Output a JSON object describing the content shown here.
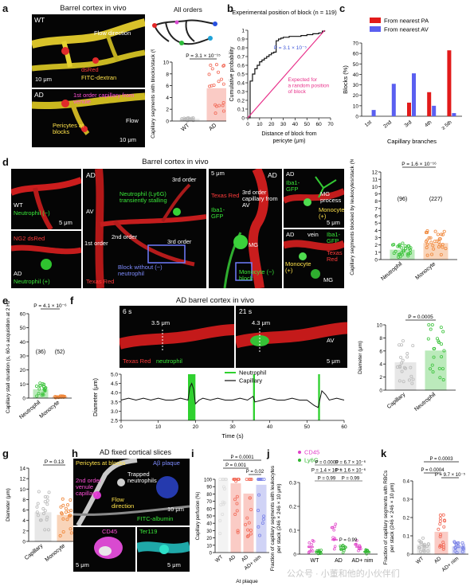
{
  "panels": {
    "a": {
      "label": "a",
      "title": "Barrel cortex in vivo",
      "wt": {
        "tag": "WT",
        "flow": "Flow direction",
        "dsred": "dsRed",
        "fitc": "FITC-dextran",
        "scale": "10 μm"
      },
      "ad": {
        "tag": "AD",
        "capillary": "1st order capillary from venule",
        "pericytes": "Pericytes at blocks",
        "flow": "Flow",
        "scale": "10 μm"
      },
      "all_orders": "All orders",
      "pvalue": "P = 3.1 × 10⁻¹⁵",
      "ylabel": "Capillary segments with blocks/stack (%)",
      "groups": [
        "WT",
        "AD"
      ]
    },
    "b": {
      "label": "b",
      "title": "Experimental position of block (n = 119)",
      "pvalue": "P = 3.1 × 10⁻⁵",
      "expected": "Expected for a random position of block",
      "ylabel": "Cumulative probability",
      "xlabel": "Distance of block from pericyte (μm)"
    },
    "c": {
      "label": "c",
      "legend": [
        "From nearest PA",
        "From nearest AV"
      ],
      "ylabel": "Blocks (%)",
      "xlabel": "Capillary branches"
    },
    "d": {
      "label": "d",
      "title": "Barrel cortex in vivo",
      "p1": {
        "wt": "WT",
        "neutrophil_minus": "Neutrophil (−)",
        "ng2": "NG2 dsRed",
        "ad": "AD",
        "neutrophil_plus": "Neutrophil (+)",
        "scale": "5 μm"
      },
      "p2": {
        "ad": "AD",
        "av": "AV",
        "first": "1st order",
        "second": "2nd order",
        "third_top": "3rd order",
        "third_bottom": "3rd order",
        "neutrophil": "Neutrophil (Ly6G) transiently stalling",
        "block": "Block without (−) neutrophil",
        "texas": "Texas Red"
      },
      "p3": {
        "scale": "5 μm",
        "ad": "AD",
        "texas": "Texas Red",
        "iba": "Iba1-GFP",
        "third": "3rd order capillary from AV",
        "mg": "MG",
        "monocyte": "Monocyte (−) block"
      },
      "p4": {
        "ad": "AD",
        "iba": "Iba1-GFP",
        "mg_process": "MG process",
        "monocyte": "Monocyte (+)",
        "scale": "5 μm"
      },
      "p5": {
        "ad": "AD",
        "vein": "vein",
        "iba": "Iba1-GFP",
        "texas": "Texas Red",
        "monocyte": "Monocyte (+)",
        "mg": "MG"
      },
      "pvalue": "P = 1.6 × 10⁻¹⁶",
      "counts": [
        "(96)",
        "(227)"
      ],
      "ylabel": "Capillary segments blocked by leukocytes/stack (%)",
      "groups": [
        "Neutrophil",
        "Monocyte"
      ]
    },
    "e": {
      "label": "e",
      "pvalue": "P = 4.1 × 10⁻⁶",
      "counts": [
        "(36)",
        "(52)"
      ],
      "ylabel": "Capillary stall duration (s, 60-s acquisition at 2 Hz)",
      "groups": [
        "Neutrophil",
        "Monocyte"
      ]
    },
    "f": {
      "label": "f",
      "title": "AD barrel cortex in vivo",
      "t1": "6 s",
      "t2": "21 s",
      "d1": "3.5 μm",
      "d2": "4.3 μm",
      "av": "AV",
      "stain_red": "Texas Red",
      "stain_green": "neutrophil",
      "scale": "5 μm",
      "legend": [
        "Neutrophil",
        "Capillary"
      ],
      "ylabel": "Diameter (μm)",
      "xlabel": "Time (s)",
      "pvalue": "P = 0.0005",
      "groups": [
        "Capillary",
        "Neutrophil"
      ]
    },
    "g": {
      "label": "g",
      "pvalue": "P = 0.13",
      "ylabel": "Diameter (μm)",
      "groups": [
        "Capillary",
        "Monocyte"
      ]
    },
    "h": {
      "label": "h",
      "title": "AD fixed cortical slices",
      "pericytes": "Pericytes at blocks",
      "ab": "Aβ plaque",
      "second": "2nd order venule capillary",
      "trapped": "Trapped neutrophils",
      "flow": "Flow direction",
      "fitc": "FITC-albumin",
      "cd45": "CD45",
      "ter119": "Ter119",
      "scale1": "10 μm",
      "scale2": "5 μm",
      "scale3": "5 μm"
    },
    "i": {
      "label": "i",
      "p_top": "P = 0.0001",
      "p_left": "P = 0.001",
      "p_right": "P = 0.02",
      "ylabel": "Capillary perfusion (%)",
      "groups": [
        "WT",
        "AD",
        "AD",
        "AD+ nim"
      ],
      "subtitle": "At plaque"
    },
    "j": {
      "label": "j",
      "legend": [
        "CD45",
        "Ly6G"
      ],
      "ptexts": [
        "P = 0.0009",
        "P = 6.7 × 10⁻⁶",
        "P = 1.4 × 10⁻⁶",
        "P = 1.6 × 10⁻⁶",
        "P = 0.99",
        "P = 0.99",
        "P = 0.99"
      ],
      "ylabel": "Fraction of capillary segments with leukocytes per stack (246 × 246 × 10 μm)",
      "groups": [
        "WT",
        "AD",
        "AD+ nim"
      ]
    },
    "k": {
      "label": "k",
      "ptexts": [
        "P = 0.0003",
        "P = 0.0004",
        "P = 9.7 × 10⁻⁵"
      ],
      "ylabel": "Fraction of capillary segments with RBCs per stack (246 × 246 × 10 μm)",
      "groups": [
        "WT",
        "AD",
        "AD+ nim"
      ]
    }
  },
  "watermark": "公众号 · 小董和他的小伙伴们",
  "chart_data": [
    {
      "type": "line",
      "panel": "b",
      "xlabel": "Distance of block from pericyte (μm)",
      "ylabel": "Cumulative probability",
      "xlim": [
        0,
        70
      ],
      "ylim": [
        0,
        1.0
      ],
      "xticks": [
        0,
        10,
        20,
        30,
        40,
        50,
        60,
        70
      ],
      "yticks": [
        0,
        0.1,
        0.2,
        0.3,
        0.4,
        0.5,
        0.6,
        0.7,
        0.8,
        0.9,
        1.0
      ],
      "series": [
        {
          "name": "Experimental position of block",
          "color": "#111111",
          "x": [
            0,
            2,
            4,
            6,
            8,
            10,
            12,
            14,
            16,
            18,
            20,
            22,
            24,
            26,
            28,
            30,
            35,
            40,
            45,
            50,
            55,
            60,
            63,
            65
          ],
          "y": [
            0,
            0.42,
            0.5,
            0.56,
            0.6,
            0.64,
            0.66,
            0.68,
            0.7,
            0.72,
            0.74,
            0.75,
            0.88,
            0.9,
            0.91,
            0.92,
            0.93,
            0.93,
            0.94,
            0.95,
            0.96,
            0.97,
            0.99,
            1.0
          ]
        },
        {
          "name": "Expected for a random position of block",
          "color": "#e8308a",
          "x": [
            0,
            65
          ],
          "y": [
            0,
            1.0
          ]
        }
      ]
    },
    {
      "type": "bar",
      "panel": "c",
      "categories": [
        "1st",
        "2nd",
        "3rd",
        "4th",
        "≥ 5th"
      ],
      "ylabel": "Blocks (%)",
      "xlabel": "Capillary branches",
      "ylim": [
        0,
        70
      ],
      "yticks": [
        0,
        10,
        20,
        30,
        40,
        50,
        60,
        70
      ],
      "series": [
        {
          "name": "From nearest PA",
          "color": "#e21a1a",
          "values": [
            0,
            0,
            13,
            23,
            63
          ]
        },
        {
          "name": "From nearest AV",
          "color": "#5a5ff0",
          "values": [
            6,
            31,
            41,
            10,
            3
          ]
        }
      ]
    },
    {
      "type": "line",
      "panel": "f",
      "xlabel": "Time (s)",
      "ylabel": "Diameter (μm)",
      "xlim": [
        0,
        60
      ],
      "ylim": [
        2.5,
        5.0
      ],
      "xticks": [
        0,
        10,
        20,
        30,
        40,
        50,
        60
      ],
      "yticks": [
        2.5,
        3.0,
        3.5,
        4.0,
        4.5,
        5.0
      ],
      "neutrophil_periods": [
        [
          18,
          20
        ],
        [
          35.5,
          36
        ],
        [
          53,
          53.5
        ]
      ],
      "series": [
        {
          "name": "Capillary",
          "color": "#111111",
          "x": [
            0,
            2,
            4,
            6,
            8,
            10,
            12,
            14,
            16,
            18,
            18.5,
            19,
            19.5,
            20,
            21,
            22,
            24,
            26,
            28,
            30,
            32,
            34,
            35.5,
            36,
            38,
            40,
            42,
            44,
            46,
            48,
            50,
            52,
            53,
            54,
            55,
            56,
            58,
            60
          ],
          "y": [
            3.6,
            3.7,
            3.6,
            3.7,
            3.6,
            3.7,
            3.6,
            3.6,
            3.7,
            3.6,
            4.3,
            4.5,
            4.2,
            3.4,
            3.6,
            3.7,
            3.6,
            3.7,
            3.6,
            3.6,
            3.7,
            3.6,
            3.8,
            3.5,
            3.6,
            3.7,
            3.6,
            3.6,
            3.7,
            3.6,
            3.6,
            3.3,
            3.2,
            4.1,
            3.9,
            3.6,
            3.7,
            3.6
          ]
        }
      ]
    },
    {
      "type": "scatter",
      "panel": "a",
      "categories": [
        "WT",
        "AD"
      ],
      "ylim": [
        0,
        10
      ],
      "yticks": [
        0,
        2,
        4,
        6,
        8,
        10
      ],
      "means": [
        0.3,
        5.5
      ],
      "colors": [
        "#bbbbbb",
        "#f26d5b"
      ]
    },
    {
      "type": "scatter",
      "panel": "d",
      "categories": [
        "Neutrophil",
        "Monocyte"
      ],
      "ylim": [
        0,
        12
      ],
      "yticks": [
        0,
        1,
        2,
        3,
        4,
        5,
        6,
        7,
        8,
        9,
        10,
        11,
        12
      ],
      "means": [
        1.3,
        2.2
      ],
      "colors": [
        "#3ec43e",
        "#f0873a"
      ]
    },
    {
      "type": "scatter",
      "panel": "e",
      "categories": [
        "Neutrophil",
        "Monocyte"
      ],
      "ylim": [
        0,
        60
      ],
      "yticks": [
        0,
        10,
        20,
        30,
        40,
        50,
        60
      ],
      "means": [
        6,
        1
      ],
      "colors": [
        "#3ec43e",
        "#f0873a"
      ]
    },
    {
      "type": "scatter",
      "panel": "f-right",
      "categories": [
        "Capillary",
        "Neutrophil"
      ],
      "ylim": [
        0,
        10
      ],
      "yticks": [
        0,
        2,
        4,
        6,
        8,
        10
      ],
      "means": [
        4.2,
        6.0
      ],
      "colors": [
        "#bbbbbb",
        "#3ec43e"
      ]
    },
    {
      "type": "scatter",
      "panel": "g",
      "categories": [
        "Capillary",
        "Monocyte"
      ],
      "ylim": [
        0,
        14
      ],
      "yticks": [
        0,
        2,
        4,
        6,
        8,
        10,
        12,
        14
      ],
      "means": [
        5.5,
        5.0
      ],
      "colors": [
        "#bbbbbb",
        "#f0873a"
      ]
    },
    {
      "type": "scatter",
      "panel": "i",
      "categories": [
        "WT",
        "AD",
        "AD",
        "AD+ nim"
      ],
      "ylim": [
        0,
        100
      ],
      "yticks": [
        0,
        10,
        20,
        30,
        40,
        50,
        60,
        70,
        80,
        90,
        100
      ],
      "means": [
        98,
        94,
        80,
        92
      ],
      "colors": [
        "#dddddd",
        "#f26d5b",
        "#f26d5b",
        "#7b83e6"
      ]
    },
    {
      "type": "scatter",
      "panel": "j",
      "categories": [
        "WT",
        "AD",
        "AD+ nim"
      ],
      "ylim": [
        0,
        0.3
      ],
      "yticks": [
        0,
        0.1,
        0.2,
        0.3
      ],
      "series": [
        {
          "name": "CD45",
          "color": "#e040c8",
          "means": [
            0.03,
            0.06,
            0.03
          ]
        },
        {
          "name": "Ly6G",
          "color": "#2fb52f",
          "means": [
            0.01,
            0.02,
            0.01
          ]
        }
      ]
    },
    {
      "type": "scatter",
      "panel": "k",
      "categories": [
        "WT",
        "AD",
        "AD+ nim"
      ],
      "ylim": [
        0,
        0.4
      ],
      "yticks": [
        0,
        0.1,
        0.2,
        0.3,
        0.4
      ],
      "means": [
        0.05,
        0.12,
        0.04
      ],
      "colors": [
        "#bbbbbb",
        "#f26d5b",
        "#7b83e6"
      ]
    }
  ]
}
